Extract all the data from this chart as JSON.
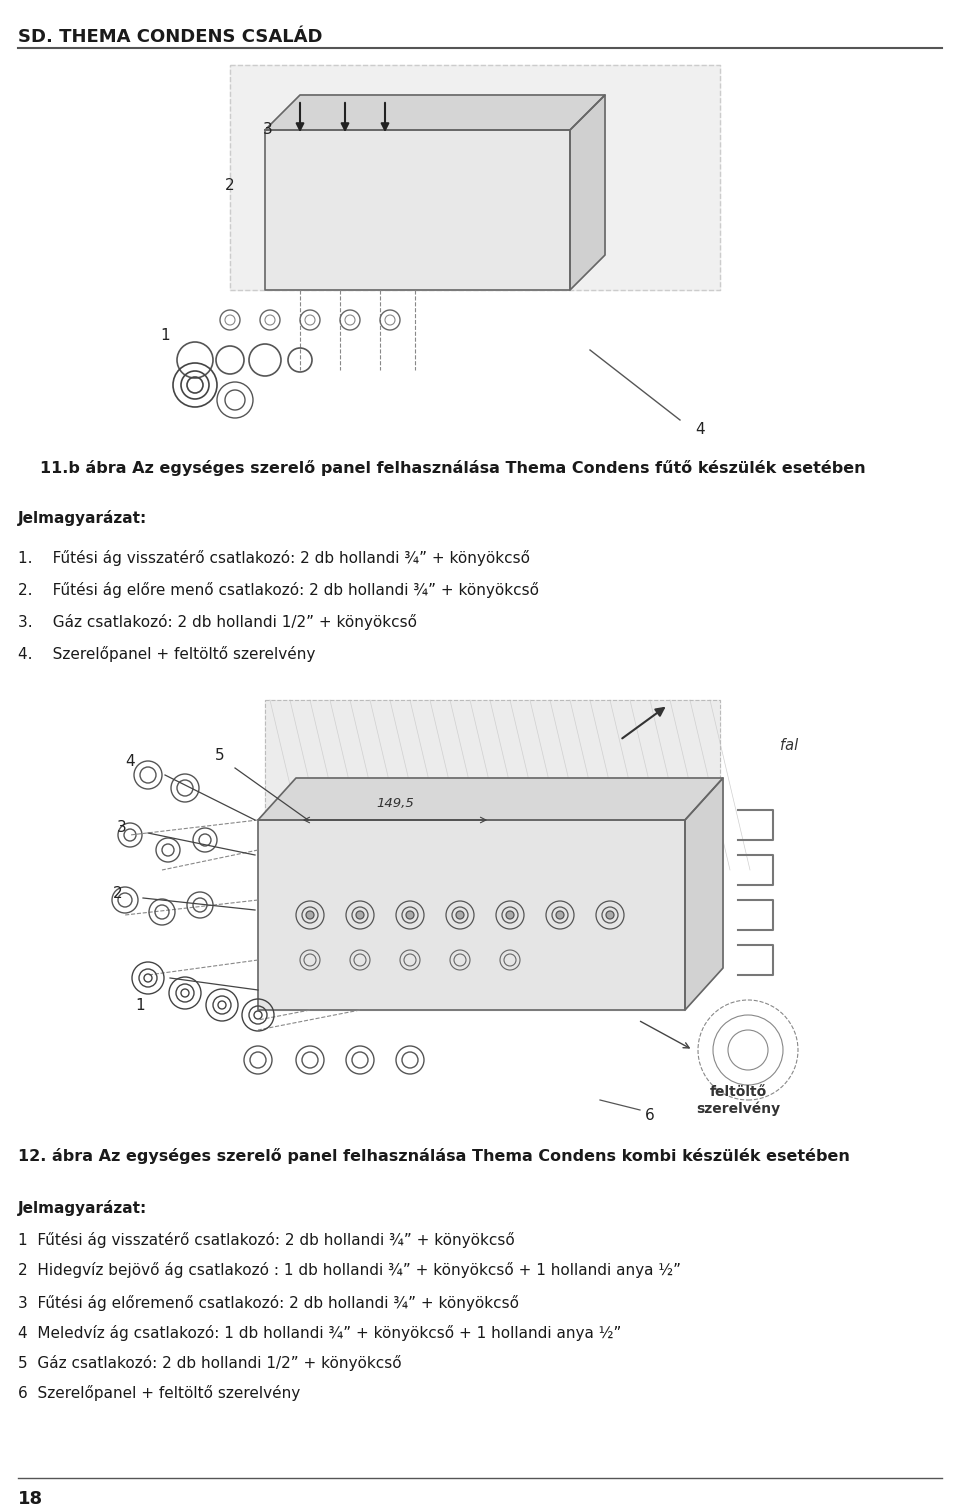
{
  "header_title": "SD. THEMA CONDENS CSALÁD",
  "background_color": "#ffffff",
  "text_color": "#1a1a1a",
  "line_color": "#333333",
  "caption1": "11.b ábra Az egységes szerelő panel felhasználása Thema Condens fűtő készülék esetében",
  "legend1_title": "Jelmagyarázat:",
  "legend1_items": [
    "1.  Fűtési ág visszatérő csatlakozó: 2 db hollandi ¾” + könyökcső",
    "2.  Fűtési ág előre menő csatlakozó: 2 db hollandi ¾” + könyökcső",
    "3.  Gáz csatlakozó: 2 db hollandi 1/2” + könyökcső",
    "4.  Szerelőpanel + feltöltő szerelvény"
  ],
  "caption2": "12. ábra Az egységes szerelő panel felhasználása Thema Condens kombi készülék esetében",
  "legend2_title": "Jelmagyarázat:",
  "legend2_items": [
    "1  Fűtési ág visszatérő csatlakozó: 2 db hollandi ¾” + könyökcső",
    "2  Hidegvíz bejövő ág csatlakozó : 1 db hollandi ¾” + könyökcső + 1 hollandi anya ½”",
    "3  Fűtési ág előremenő csatlakozó: 2 db hollandi ¾” + könyökcső",
    "4  Meledvíz ág csatlakozó: 1 db hollandi ¾” + könyökcső + 1 hollandi anya ½”",
    "5  Gáz csatlakozó: 2 db hollandi 1/2” + könyökcső",
    "6  Szerelőpanel + feltöltő szerelvény"
  ],
  "page_number": "18",
  "diag1_label_1": "1",
  "diag1_label_2": "2",
  "diag1_label_3": "3",
  "diag1_label_4": "4",
  "diag2_label_1": "1",
  "diag2_label_2": "2",
  "diag2_label_3": "3",
  "diag2_label_4": "4",
  "diag2_label_5": "5",
  "diag2_label_6": "6",
  "diag2_fal": "fal",
  "diag2_feltoelto": "feltöltő\nszerelvény",
  "diag2_meret": "149,5"
}
